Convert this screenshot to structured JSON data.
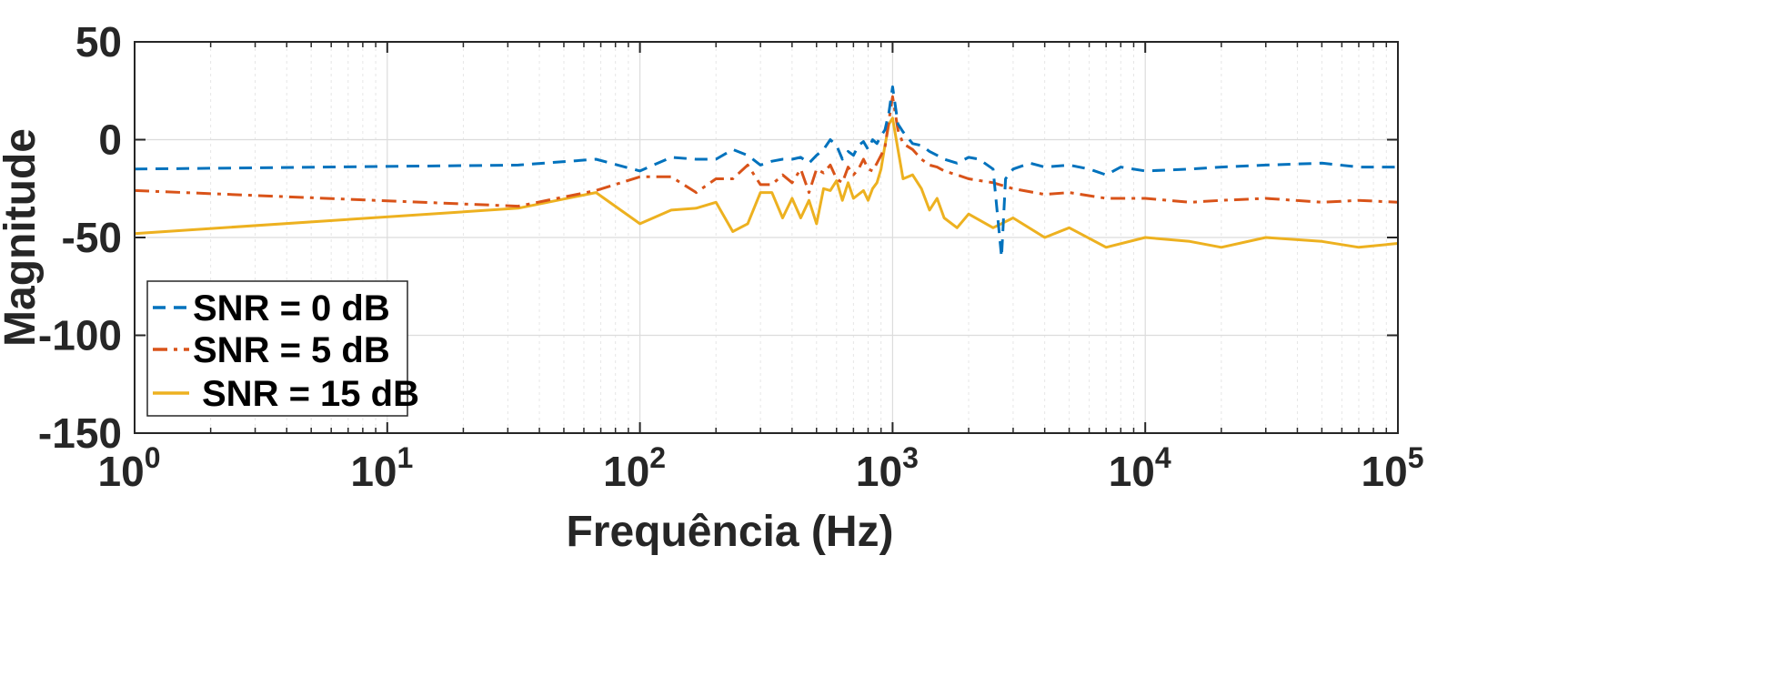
{
  "chart_data": {
    "type": "line",
    "title": "",
    "xlabel": "Frequência (Hz)",
    "ylabel": "Magnitude",
    "xscale": "log",
    "xlim": [
      1,
      100000
    ],
    "ylim": [
      -150,
      50
    ],
    "xticks": [
      {
        "base": "10",
        "exp": "0"
      },
      {
        "base": "10",
        "exp": "1"
      },
      {
        "base": "10",
        "exp": "2"
      },
      {
        "base": "10",
        "exp": "3"
      },
      {
        "base": "10",
        "exp": "4"
      },
      {
        "base": "10",
        "exp": "5"
      }
    ],
    "yticks": [
      "50",
      "0",
      "-50",
      "-100",
      "-150"
    ],
    "grid": true,
    "legend_position": "bottom-left",
    "series": [
      {
        "name": "SNR = 0 dB",
        "color": "#0072BD",
        "style": "dashed",
        "x": [
          1,
          33,
          67,
          100,
          133,
          167,
          200,
          233,
          267,
          300,
          333,
          367,
          400,
          433,
          467,
          500,
          533,
          567,
          600,
          633,
          667,
          700,
          733,
          767,
          800,
          833,
          867,
          900,
          933,
          967,
          1000,
          1050,
          1100,
          1200,
          1300,
          1400,
          1500,
          1600,
          1800,
          2000,
          2200,
          2500,
          2700,
          2800,
          3000,
          3500,
          4000,
          5000,
          6000,
          7000,
          8000,
          10000,
          15000,
          20000,
          30000,
          50000,
          70000,
          100000
        ],
        "y": [
          -15,
          -13,
          -10,
          -16,
          -9,
          -10,
          -10,
          -5,
          -8,
          -13,
          -11,
          -10,
          -10,
          -9,
          -12,
          -8,
          -5,
          0,
          -3,
          -10,
          -6,
          -8,
          -3,
          -1,
          -5,
          0,
          -2,
          2,
          5,
          14,
          27,
          8,
          4,
          -2,
          -3,
          -6,
          -8,
          -10,
          -12,
          -9,
          -10,
          -15,
          -60,
          -20,
          -15,
          -12,
          -14,
          -13,
          -15,
          -18,
          -14,
          -16,
          -15,
          -14,
          -13,
          -12,
          -14,
          -14
        ]
      },
      {
        "name": "SNR = 5 dB",
        "color": "#D95319",
        "style": "dashdot",
        "x": [
          1,
          33,
          67,
          100,
          133,
          167,
          200,
          233,
          267,
          300,
          333,
          367,
          400,
          433,
          467,
          500,
          533,
          567,
          600,
          633,
          667,
          700,
          733,
          767,
          800,
          833,
          867,
          900,
          933,
          967,
          1000,
          1050,
          1100,
          1200,
          1300,
          1400,
          1500,
          1600,
          1800,
          2000,
          2500,
          3000,
          4000,
          5000,
          7000,
          10000,
          15000,
          20000,
          30000,
          50000,
          70000,
          100000
        ],
        "y": [
          -26,
          -34,
          -26,
          -19,
          -19,
          -27,
          -20,
          -20,
          -13,
          -23,
          -23,
          -18,
          -22,
          -15,
          -27,
          -15,
          -17,
          -13,
          -20,
          -22,
          -14,
          -18,
          -15,
          -10,
          -15,
          -16,
          -12,
          -8,
          -4,
          10,
          22,
          5,
          -2,
          -5,
          -10,
          -13,
          -14,
          -16,
          -18,
          -20,
          -22,
          -25,
          -28,
          -27,
          -30,
          -30,
          -32,
          -31,
          -30,
          -32,
          -31,
          -32
        ]
      },
      {
        "name": "SNR = 15 dB",
        "color": "#EDB120",
        "style": "solid",
        "x": [
          1,
          33,
          67,
          100,
          133,
          167,
          200,
          233,
          267,
          300,
          333,
          367,
          400,
          433,
          467,
          500,
          533,
          567,
          600,
          633,
          667,
          700,
          733,
          767,
          800,
          833,
          867,
          900,
          933,
          967,
          1000,
          1050,
          1100,
          1200,
          1300,
          1400,
          1500,
          1600,
          1800,
          2000,
          2500,
          3000,
          4000,
          5000,
          7000,
          10000,
          15000,
          20000,
          30000,
          50000,
          70000,
          100000
        ],
        "y": [
          -48,
          -35,
          -27,
          -43,
          -36,
          -35,
          -32,
          -47,
          -43,
          -27,
          -27,
          -40,
          -30,
          -40,
          -31,
          -43,
          -25,
          -26,
          -21,
          -31,
          -22,
          -30,
          -28,
          -26,
          -31,
          -25,
          -22,
          -15,
          -3,
          8,
          11,
          -5,
          -20,
          -18,
          -25,
          -36,
          -30,
          -40,
          -45,
          -38,
          -45,
          -40,
          -50,
          -45,
          -55,
          -50,
          -52,
          -55,
          -50,
          -52,
          -55,
          -53
        ]
      }
    ]
  }
}
